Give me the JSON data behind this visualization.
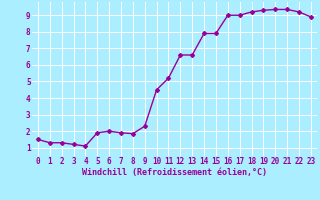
{
  "x": [
    0,
    1,
    2,
    3,
    4,
    5,
    6,
    7,
    8,
    9,
    10,
    11,
    12,
    13,
    14,
    15,
    16,
    17,
    18,
    19,
    20,
    21,
    22,
    23
  ],
  "y": [
    1.5,
    1.3,
    1.3,
    1.2,
    1.1,
    1.9,
    2.0,
    1.9,
    1.85,
    2.3,
    4.5,
    5.2,
    6.6,
    6.6,
    7.9,
    7.9,
    9.0,
    9.0,
    9.2,
    9.3,
    9.35,
    9.35,
    9.2,
    8.9
  ],
  "line_color": "#990099",
  "marker": "D",
  "marker_size": 2.0,
  "bg_color": "#aaeeff",
  "grid_color": "#ffffff",
  "xlabel": "Windchill (Refroidissement éolien,°C)",
  "xlabel_color": "#990099",
  "tick_color": "#990099",
  "xlim": [
    -0.5,
    23.5
  ],
  "ylim": [
    0.5,
    9.8
  ],
  "yticks": [
    1,
    2,
    3,
    4,
    5,
    6,
    7,
    8,
    9
  ],
  "xticks": [
    0,
    1,
    2,
    3,
    4,
    5,
    6,
    7,
    8,
    9,
    10,
    11,
    12,
    13,
    14,
    15,
    16,
    17,
    18,
    19,
    20,
    21,
    22,
    23
  ],
  "tick_fontsize": 5.5,
  "xlabel_fontsize": 6.0,
  "line_width": 1.0
}
